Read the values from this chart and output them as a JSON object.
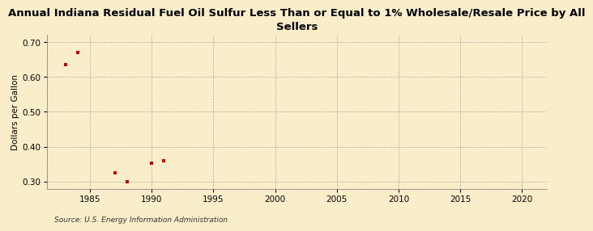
{
  "title": "Annual Indiana Residual Fuel Oil Sulfur Less Than or Equal to 1% Wholesale/Resale Price by All\nSellers",
  "ylabel": "Dollars per Gallon",
  "source": "Source: U.S. Energy Information Administration",
  "x_data": [
    1983,
    1984,
    1987,
    1988,
    1990,
    1991
  ],
  "y_data": [
    0.635,
    0.67,
    0.325,
    0.3,
    0.353,
    0.36
  ],
  "marker_color": "#cc0000",
  "marker": "s",
  "marker_size": 3.5,
  "xlim": [
    1981.5,
    2022
  ],
  "ylim": [
    0.278,
    0.72
  ],
  "xticks": [
    1985,
    1990,
    1995,
    2000,
    2005,
    2010,
    2015,
    2020
  ],
  "yticks": [
    0.3,
    0.4,
    0.5,
    0.6,
    0.7
  ],
  "background_color": "#faeeca",
  "grid_color": "#aaaaaa",
  "title_fontsize": 9.5,
  "label_fontsize": 7.5,
  "tick_fontsize": 7.5,
  "source_fontsize": 6.5
}
